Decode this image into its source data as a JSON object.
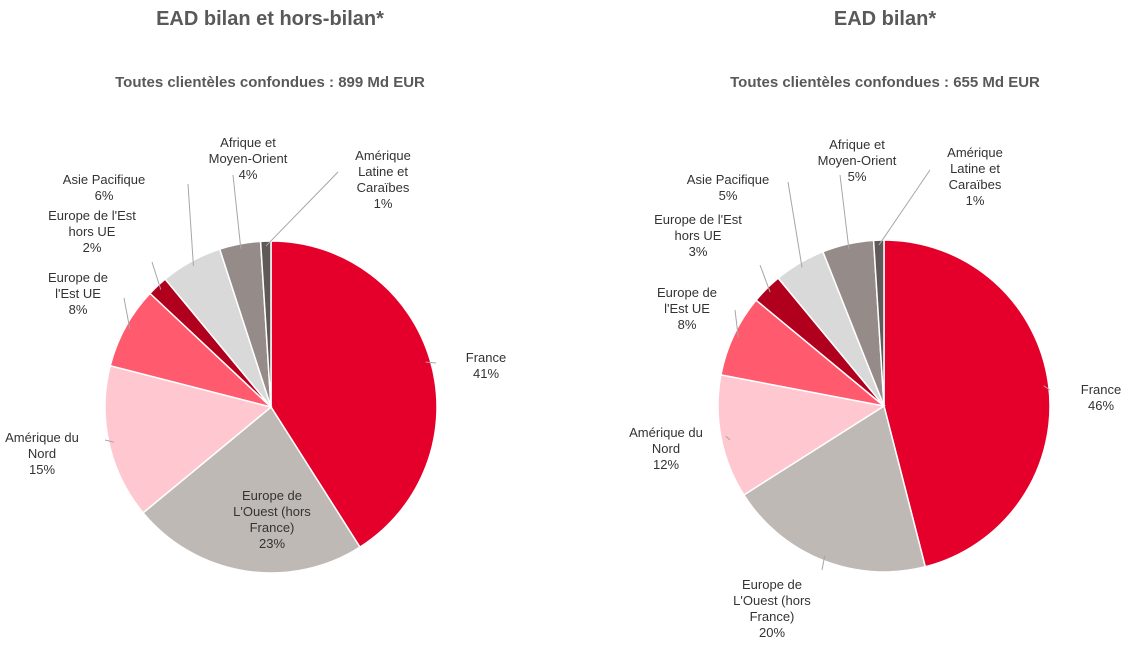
{
  "chart_data": [
    {
      "type": "pie",
      "title": "EAD bilan et hors-bilan*",
      "subtitle": "Toutes clientèles confondues : 899 Md EUR",
      "categories": [
        "France",
        "Europe de L'Ouest (hors France)",
        "Amérique du Nord",
        "Europe de l'Est UE",
        "Europe de l'Est hors UE",
        "Asie Pacifique",
        "Afrique et Moyen-Orient",
        "Amérique Latine et Caraïbes"
      ],
      "values": [
        41,
        23,
        15,
        8,
        2,
        6,
        4,
        1
      ],
      "value_labels": [
        "41%",
        "23%",
        "15%",
        "8%",
        "2%",
        "6%",
        "4%",
        "1%"
      ],
      "colors": [
        "#e4002b",
        "#bfb9b6",
        "#ffc7d0",
        "#ff5a6e",
        "#b0001e",
        "#d9d9d9",
        "#958c8a",
        "#5f5a58"
      ]
    },
    {
      "type": "pie",
      "title": "EAD bilan*",
      "subtitle": "Toutes clientèles confondues : 655 Md EUR",
      "categories": [
        "France",
        "Europe de L'Ouest (hors France)",
        "Amérique du Nord",
        "Europe de l'Est UE",
        "Europe de l'Est hors UE",
        "Asie Pacifique",
        "Afrique et Moyen-Orient",
        "Amérique Latine et Caraïbes"
      ],
      "values": [
        46,
        20,
        12,
        8,
        3,
        5,
        5,
        1
      ],
      "value_labels": [
        "46%",
        "20%",
        "12%",
        "8%",
        "3%",
        "5%",
        "5%",
        "1%"
      ],
      "colors": [
        "#e4002b",
        "#bfb9b6",
        "#ffc7d0",
        "#ff5a6e",
        "#b0001e",
        "#d9d9d9",
        "#958c8a",
        "#5f5a58"
      ]
    }
  ]
}
